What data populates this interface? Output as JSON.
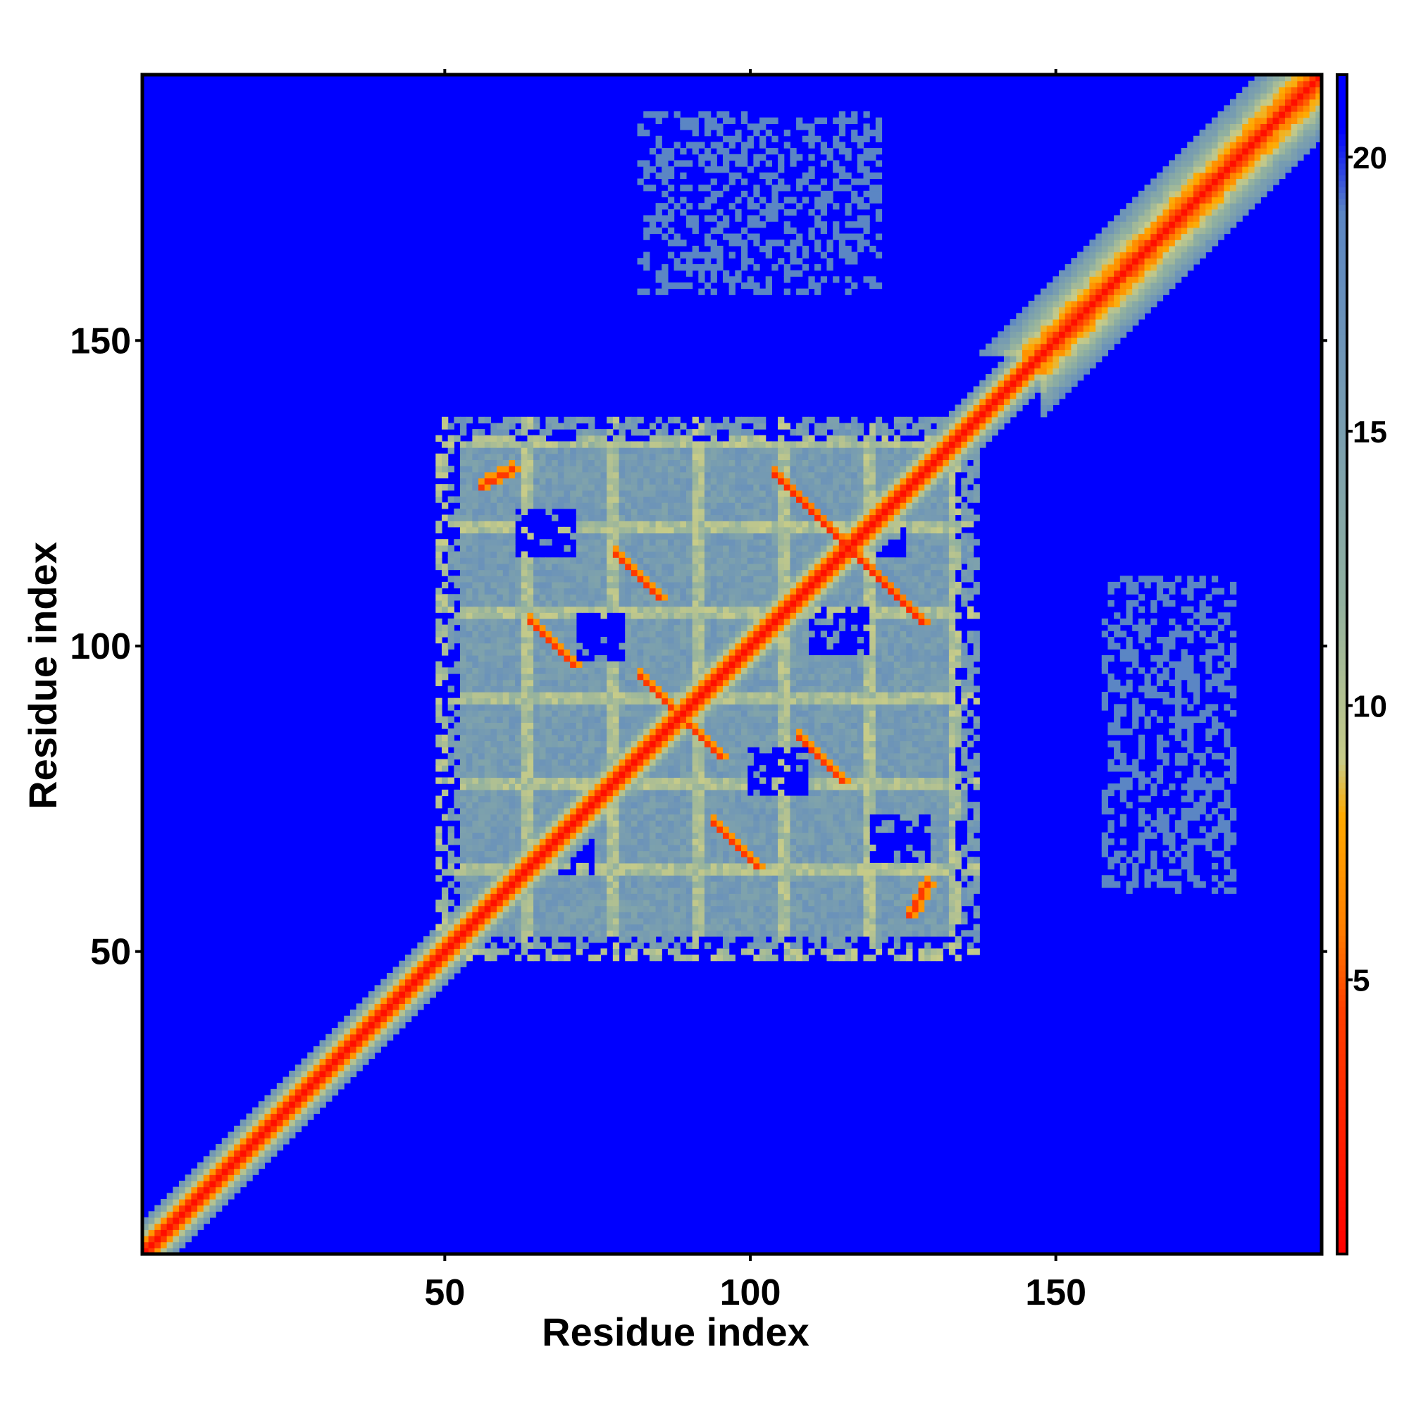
{
  "chart_data": {
    "type": "heatmap",
    "title": "",
    "xlabel": "Residue index",
    "ylabel": "Residue index",
    "xlim": [
      1,
      193
    ],
    "ylim": [
      1,
      193
    ],
    "x_ticks": [
      50,
      100,
      150
    ],
    "y_ticks": [
      50,
      100,
      150
    ],
    "x_tick_labels": [
      "50",
      "100",
      "150"
    ],
    "y_tick_labels": [
      "50",
      "100",
      "150"
    ],
    "colorbar": {
      "range": [
        0,
        21.5
      ],
      "ticks": [
        5,
        10,
        15,
        20
      ],
      "tick_labels": [
        "5",
        "10",
        "15",
        "20"
      ],
      "color_stops": [
        {
          "value": 0,
          "color": "#ff0000"
        },
        {
          "value": 4.5,
          "color": "#ff4000"
        },
        {
          "value": 6,
          "color": "#ff8000"
        },
        {
          "value": 8,
          "color": "#ffaa00"
        },
        {
          "value": 9,
          "color": "#c8cc88"
        },
        {
          "value": 12,
          "color": "#90b0a0"
        },
        {
          "value": 19,
          "color": "#5b86c4"
        },
        {
          "value": 20.5,
          "color": "#0000ff"
        },
        {
          "value": 21.5,
          "color": "#0000ff"
        }
      ]
    },
    "background_value": 21,
    "diagonal": {
      "from": 1,
      "to": 193,
      "core_value": 1,
      "band_width_residues": 5
    },
    "helix_diagonal_segments": [
      {
        "from": 24,
        "to": 35,
        "value": 5
      },
      {
        "from": 148,
        "to": 193,
        "value": 6,
        "band_width_residues": 10
      }
    ],
    "domain_block": {
      "x_range": [
        49,
        137
      ],
      "y_range": [
        49,
        137
      ],
      "value": 17
    },
    "contact_lines": [
      {
        "x1": 56,
        "y1": 126,
        "x2": 61,
        "y2": 129,
        "value": 6
      },
      {
        "x1": 104,
        "y1": 128,
        "x2": 128,
        "y2": 104,
        "value": 5
      },
      {
        "x1": 78,
        "y1": 115,
        "x2": 85,
        "y2": 108,
        "value": 6
      },
      {
        "x1": 64,
        "y1": 104,
        "x2": 71,
        "y2": 97,
        "value": 6
      },
      {
        "x1": 82,
        "y1": 95,
        "x2": 95,
        "y2": 82,
        "value": 6
      },
      {
        "x1": 108,
        "y1": 85,
        "x2": 115,
        "y2": 78,
        "value": 6
      },
      {
        "x1": 94,
        "y1": 71,
        "x2": 101,
        "y2": 64,
        "value": 6
      },
      {
        "x1": 126,
        "y1": 56,
        "x2": 129,
        "y2": 61,
        "value": 6
      }
    ],
    "blue_holes": [
      {
        "x": 62,
        "y": 115,
        "w": 10,
        "h": 8
      },
      {
        "x": 72,
        "y": 98,
        "w": 8,
        "h": 8
      },
      {
        "x": 110,
        "y": 99,
        "w": 10,
        "h": 8
      },
      {
        "x": 100,
        "y": 76,
        "w": 10,
        "h": 8
      },
      {
        "x": 120,
        "y": 65,
        "w": 10,
        "h": 8
      },
      {
        "x": 65,
        "y": 63,
        "w": 10,
        "h": 8
      },
      {
        "x": 118,
        "y": 115,
        "w": 8,
        "h": 8
      }
    ],
    "noise_patches": [
      {
        "x": 82,
        "y": 158,
        "w": 40,
        "h": 30,
        "value": 19
      },
      {
        "x": 158,
        "y": 60,
        "w": 22,
        "h": 52,
        "value": 19
      }
    ]
  }
}
